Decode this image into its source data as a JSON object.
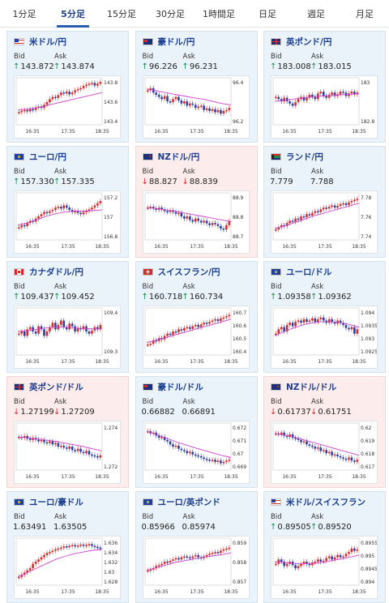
{
  "tabs": [
    "1分足",
    "5分足",
    "15分足",
    "30分足",
    "1時間足",
    "日足",
    "週足",
    "月足"
  ],
  "active_tab": 1,
  "labels": {
    "bid": "Bid",
    "ask": "Ask"
  },
  "time_labels": [
    "16:35",
    "17:35",
    "18:35"
  ],
  "colors": {
    "up_candle": "#d62b2b",
    "down_candle": "#2a3fa0",
    "ma_line": "#cc44cc",
    "up_arrow": "#1e8a4a",
    "down_arrow": "#d62b2b"
  },
  "cards": [
    {
      "pair": "米ドル/円",
      "flag": "us",
      "change": "up",
      "bid": "143.872",
      "ask": "143.874",
      "ticks": [
        "143.8",
        "143.6",
        "143.4"
      ],
      "ohlc_trend": [
        0.25,
        0.28,
        0.3,
        0.27,
        0.32,
        0.3,
        0.36,
        0.38,
        0.35,
        0.42,
        0.48,
        0.55,
        0.6,
        0.58,
        0.64,
        0.7,
        0.68,
        0.72,
        0.66,
        0.7,
        0.75,
        0.78,
        0.8,
        0.85,
        0.88,
        0.9,
        0.92,
        0.86,
        0.9,
        0.94
      ],
      "ma": [
        0.3,
        0.32,
        0.35,
        0.4,
        0.45,
        0.5,
        0.55,
        0.6,
        0.65,
        0.7
      ]
    },
    {
      "pair": "豪ドル/円",
      "flag": "au",
      "change": "up",
      "bid": "96.226",
      "ask": "96.231",
      "ticks": [
        "96.4",
        "96.2"
      ],
      "ohlc_trend": [
        0.75,
        0.8,
        0.7,
        0.65,
        0.6,
        0.55,
        0.62,
        0.5,
        0.48,
        0.55,
        0.6,
        0.52,
        0.45,
        0.5,
        0.4,
        0.45,
        0.42,
        0.35,
        0.38,
        0.4,
        0.3,
        0.34,
        0.28,
        0.32,
        0.25,
        0.3,
        0.22,
        0.28,
        0.3,
        0.35
      ],
      "ma": [
        0.78,
        0.74,
        0.7,
        0.66,
        0.62,
        0.58,
        0.55,
        0.5,
        0.45,
        0.42
      ]
    },
    {
      "pair": "英ポンド/円",
      "flag": "gb",
      "change": "up",
      "bid": "183.008",
      "ask": "183.015",
      "ticks": [
        "183",
        "182.8"
      ],
      "ohlc_trend": [
        0.6,
        0.55,
        0.5,
        0.58,
        0.5,
        0.45,
        0.4,
        0.48,
        0.55,
        0.6,
        0.52,
        0.58,
        0.65,
        0.6,
        0.55,
        0.68,
        0.72,
        0.62,
        0.58,
        0.65,
        0.7,
        0.62,
        0.66,
        0.72,
        0.7,
        0.62,
        0.68,
        0.72,
        0.66,
        0.7
      ],
      "ma": [
        0.5,
        0.52,
        0.55,
        0.58,
        0.6,
        0.62,
        0.63,
        0.65,
        0.66,
        0.67
      ]
    },
    {
      "pair": "ユーロ/円",
      "flag": "eu",
      "change": "up",
      "bid": "157.330",
      "ask": "157.335",
      "ticks": [
        "157.2",
        "157",
        "156.8"
      ],
      "ohlc_trend": [
        0.25,
        0.3,
        0.28,
        0.35,
        0.4,
        0.38,
        0.45,
        0.5,
        0.55,
        0.6,
        0.58,
        0.62,
        0.65,
        0.7,
        0.72,
        0.68,
        0.75,
        0.7,
        0.65,
        0.6,
        0.62,
        0.58,
        0.55,
        0.6,
        0.62,
        0.66,
        0.7,
        0.75,
        0.8,
        0.85
      ],
      "ma": [
        0.3,
        0.35,
        0.42,
        0.5,
        0.56,
        0.6,
        0.62,
        0.62,
        0.63,
        0.65
      ]
    },
    {
      "pair": "NZドル/円",
      "flag": "nz",
      "change": "down",
      "bid": "88.827",
      "ask": "88.839",
      "ticks": [
        "88.9",
        "88.8",
        "88.7"
      ],
      "ohlc_trend": [
        0.7,
        0.72,
        0.68,
        0.65,
        0.7,
        0.66,
        0.62,
        0.6,
        0.64,
        0.6,
        0.56,
        0.58,
        0.5,
        0.45,
        0.5,
        0.42,
        0.38,
        0.45,
        0.4,
        0.36,
        0.4,
        0.34,
        0.3,
        0.35,
        0.32,
        0.28,
        0.22,
        0.2,
        0.3,
        0.4
      ],
      "ma": [
        0.7,
        0.68,
        0.65,
        0.62,
        0.58,
        0.54,
        0.5,
        0.46,
        0.42,
        0.38
      ]
    },
    {
      "pair": "ランド/円",
      "flag": "za",
      "change": "none",
      "bid": "7.779",
      "ask": "7.788",
      "ticks": [
        "7.78",
        "7.76",
        "7.74"
      ],
      "ohlc_trend": [
        0.2,
        0.25,
        0.3,
        0.28,
        0.35,
        0.4,
        0.38,
        0.45,
        0.42,
        0.5,
        0.48,
        0.55,
        0.52,
        0.58,
        0.62,
        0.6,
        0.66,
        0.7,
        0.68,
        0.72,
        0.75,
        0.7,
        0.74,
        0.78,
        0.8,
        0.76,
        0.82,
        0.85,
        0.88,
        0.9
      ],
      "ma": [
        0.22,
        0.28,
        0.35,
        0.42,
        0.5,
        0.56,
        0.62,
        0.68,
        0.74,
        0.8
      ]
    },
    {
      "pair": "カナダドル/円",
      "flag": "ca",
      "change": "up",
      "bid": "109.437",
      "ask": "109.452",
      "ticks": [
        "109.4",
        "109.3"
      ],
      "ohlc_trend": [
        0.45,
        0.5,
        0.4,
        0.55,
        0.6,
        0.5,
        0.45,
        0.62,
        0.55,
        0.4,
        0.5,
        0.6,
        0.7,
        0.55,
        0.65,
        0.75,
        0.6,
        0.55,
        0.68,
        0.62,
        0.5,
        0.58,
        0.55,
        0.62,
        0.5,
        0.45,
        0.52,
        0.6,
        0.55,
        0.65
      ],
      "ma": [
        0.5,
        0.52,
        0.55,
        0.58,
        0.6,
        0.6,
        0.58,
        0.57,
        0.56,
        0.56
      ]
    },
    {
      "pair": "スイスフラン/円",
      "flag": "ch",
      "change": "up",
      "bid": "160.718",
      "ask": "160.734",
      "ticks": [
        "160.7",
        "160.6",
        "160.5",
        "160.4"
      ],
      "ohlc_trend": [
        0.2,
        0.22,
        0.3,
        0.28,
        0.35,
        0.32,
        0.4,
        0.45,
        0.42,
        0.5,
        0.48,
        0.55,
        0.52,
        0.58,
        0.6,
        0.56,
        0.62,
        0.65,
        0.6,
        0.66,
        0.7,
        0.68,
        0.72,
        0.75,
        0.78,
        0.74,
        0.8,
        0.82,
        0.85,
        0.88
      ],
      "ma": [
        0.25,
        0.3,
        0.36,
        0.42,
        0.48,
        0.54,
        0.6,
        0.66,
        0.72,
        0.78
      ]
    },
    {
      "pair": "ユーロ/ドル",
      "flag": "eu-us",
      "change": "up",
      "bid": "1.09358",
      "ask": "1.09362",
      "ticks": [
        "1.094",
        "1.0935",
        "1.093",
        "1.0925"
      ],
      "ohlc_trend": [
        0.45,
        0.55,
        0.6,
        0.5,
        0.65,
        0.7,
        0.62,
        0.72,
        0.75,
        0.7,
        0.78,
        0.72,
        0.75,
        0.8,
        0.72,
        0.78,
        0.82,
        0.75,
        0.7,
        0.78,
        0.72,
        0.68,
        0.75,
        0.7,
        0.65,
        0.58,
        0.55,
        0.6,
        0.45,
        0.55
      ],
      "ma": [
        0.4,
        0.5,
        0.58,
        0.65,
        0.7,
        0.72,
        0.72,
        0.7,
        0.66,
        0.6
      ]
    },
    {
      "pair": "英ポンド/ドル",
      "flag": "gb-us",
      "change": "down",
      "bid": "1.27199",
      "ask": "1.27209",
      "ticks": [
        "1.274",
        "1.272"
      ],
      "ohlc_trend": [
        0.72,
        0.7,
        0.74,
        0.68,
        0.65,
        0.7,
        0.66,
        0.62,
        0.65,
        0.6,
        0.58,
        0.62,
        0.55,
        0.58,
        0.5,
        0.52,
        0.48,
        0.45,
        0.5,
        0.42,
        0.4,
        0.45,
        0.38,
        0.35,
        0.4,
        0.32,
        0.3,
        0.28,
        0.25,
        0.3
      ],
      "ma": [
        0.72,
        0.7,
        0.68,
        0.65,
        0.62,
        0.58,
        0.54,
        0.5,
        0.45,
        0.4
      ]
    },
    {
      "pair": "豪ドル/ドル",
      "flag": "au-us",
      "change": "none",
      "bid": "0.66882",
      "ask": "0.66891",
      "ticks": [
        "0.672",
        "0.671",
        "0.67",
        "0.669"
      ],
      "ohlc_trend": [
        0.85,
        0.8,
        0.82,
        0.75,
        0.7,
        0.72,
        0.65,
        0.62,
        0.55,
        0.5,
        0.52,
        0.45,
        0.42,
        0.4,
        0.35,
        0.38,
        0.32,
        0.3,
        0.28,
        0.25,
        0.22,
        0.2,
        0.18,
        0.2,
        0.15,
        0.18,
        0.12,
        0.15,
        0.18,
        0.2
      ],
      "ma": [
        0.85,
        0.78,
        0.7,
        0.62,
        0.55,
        0.48,
        0.42,
        0.36,
        0.3,
        0.25
      ]
    },
    {
      "pair": "NZドル/ドル",
      "flag": "nz-us",
      "change": "down",
      "bid": "0.61737",
      "ask": "0.61751",
      "ticks": [
        "0.62",
        "0.619",
        "0.618",
        "0.617"
      ],
      "ohlc_trend": [
        0.8,
        0.78,
        0.82,
        0.75,
        0.72,
        0.78,
        0.7,
        0.68,
        0.65,
        0.6,
        0.62,
        0.55,
        0.52,
        0.5,
        0.45,
        0.48,
        0.4,
        0.42,
        0.35,
        0.38,
        0.3,
        0.32,
        0.28,
        0.25,
        0.22,
        0.2,
        0.25,
        0.18,
        0.15,
        0.2
      ],
      "ma": [
        0.8,
        0.76,
        0.72,
        0.66,
        0.6,
        0.54,
        0.48,
        0.42,
        0.36,
        0.3
      ]
    },
    {
      "pair": "ユーロ/豪ドル",
      "flag": "eu-au",
      "change": "none",
      "bid": "1.63491",
      "ask": "1.63505",
      "ticks": [
        "1.636",
        "1.634",
        "1.632",
        "1.63",
        "1.628"
      ],
      "ohlc_trend": [
        0.15,
        0.2,
        0.25,
        0.3,
        0.35,
        0.45,
        0.5,
        0.55,
        0.6,
        0.65,
        0.7,
        0.72,
        0.75,
        0.78,
        0.8,
        0.82,
        0.85,
        0.84,
        0.86,
        0.88,
        0.85,
        0.87,
        0.89,
        0.86,
        0.88,
        0.9,
        0.86,
        0.84,
        0.82,
        0.8
      ],
      "ma": [
        0.15,
        0.25,
        0.35,
        0.45,
        0.55,
        0.62,
        0.68,
        0.72,
        0.76,
        0.78
      ]
    },
    {
      "pair": "ユーロ/英ポンド",
      "flag": "eu-gb",
      "change": "none",
      "bid": "0.85966",
      "ask": "0.85974",
      "ticks": [
        "0.859",
        "0.858",
        "0.857"
      ],
      "ohlc_trend": [
        0.3,
        0.32,
        0.35,
        0.4,
        0.42,
        0.45,
        0.5,
        0.48,
        0.52,
        0.55,
        0.58,
        0.55,
        0.6,
        0.62,
        0.6,
        0.58,
        0.62,
        0.65,
        0.6,
        0.58,
        0.62,
        0.65,
        0.68,
        0.7,
        0.72,
        0.7,
        0.75,
        0.78,
        0.8,
        0.82
      ],
      "ma": [
        0.3,
        0.36,
        0.42,
        0.48,
        0.52,
        0.56,
        0.6,
        0.63,
        0.66,
        0.7
      ]
    },
    {
      "pair": "米ドル/スイスフラン",
      "flag": "us-ch",
      "change": "up",
      "bid": "0.89505",
      "ask": "0.89520",
      "ticks": [
        "0.8955",
        "0.895",
        "0.8945",
        "0.894"
      ],
      "ohlc_trend": [
        0.45,
        0.55,
        0.5,
        0.4,
        0.45,
        0.5,
        0.42,
        0.35,
        0.4,
        0.45,
        0.5,
        0.45,
        0.42,
        0.48,
        0.5,
        0.55,
        0.5,
        0.52,
        0.58,
        0.62,
        0.55,
        0.6,
        0.65,
        0.6,
        0.62,
        0.68,
        0.72,
        0.8,
        0.75,
        0.78
      ],
      "ma": [
        0.5,
        0.48,
        0.46,
        0.45,
        0.46,
        0.48,
        0.52,
        0.56,
        0.6,
        0.65
      ]
    }
  ]
}
